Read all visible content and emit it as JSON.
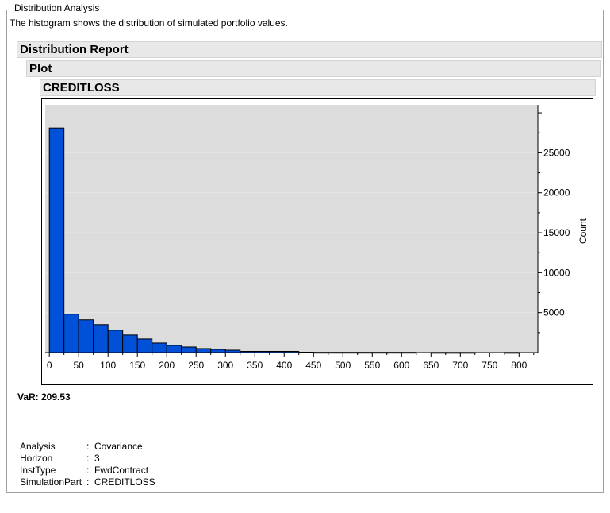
{
  "panel": {
    "legend": "Distribution Analysis",
    "description": "The histogram shows the distribution of simulated portfolio values."
  },
  "headers": {
    "report": "Distribution Report",
    "plot": "Plot",
    "variable": "CREDITLOSS"
  },
  "var_label": "VaR: 209.53",
  "meta": [
    {
      "key": "Analysis",
      "sep": ":",
      "value": "Covariance"
    },
    {
      "key": "Horizon",
      "sep": ":",
      "value": "3"
    },
    {
      "key": "InstType",
      "sep": ":",
      "value": "FwdContract"
    },
    {
      "key": "SimulationPart",
      "sep": ":",
      "value": "CREDITLOSS"
    }
  ],
  "chart_data": {
    "type": "bar",
    "title": "",
    "xlabel": "",
    "ylabel": "Count",
    "bin_width": 25,
    "bin_starts": [
      0,
      25,
      50,
      75,
      100,
      125,
      150,
      175,
      200,
      225,
      250,
      275,
      300,
      325,
      350,
      375,
      400,
      425,
      450,
      475,
      500,
      525,
      550,
      575,
      600,
      625,
      650,
      675,
      700,
      725,
      750,
      775
    ],
    "values": [
      28100,
      4800,
      4100,
      3500,
      2800,
      2200,
      1700,
      1200,
      900,
      700,
      500,
      400,
      300,
      150,
      150,
      150,
      150,
      50,
      30,
      30,
      30,
      30,
      30,
      30,
      30,
      0,
      20,
      20,
      20,
      0,
      0,
      20
    ],
    "xlim": [
      -7,
      832
    ],
    "ylim": [
      0,
      31000
    ],
    "x_ticks": [
      0,
      50,
      100,
      150,
      200,
      250,
      300,
      350,
      400,
      450,
      500,
      550,
      600,
      650,
      700,
      750,
      800
    ],
    "y_ticks": [
      5000,
      10000,
      15000,
      20000,
      25000
    ],
    "y_axis_side": "right",
    "grid": true,
    "colors": {
      "bar": "#0050d8",
      "plot_bg": "#dcdcdc"
    }
  }
}
